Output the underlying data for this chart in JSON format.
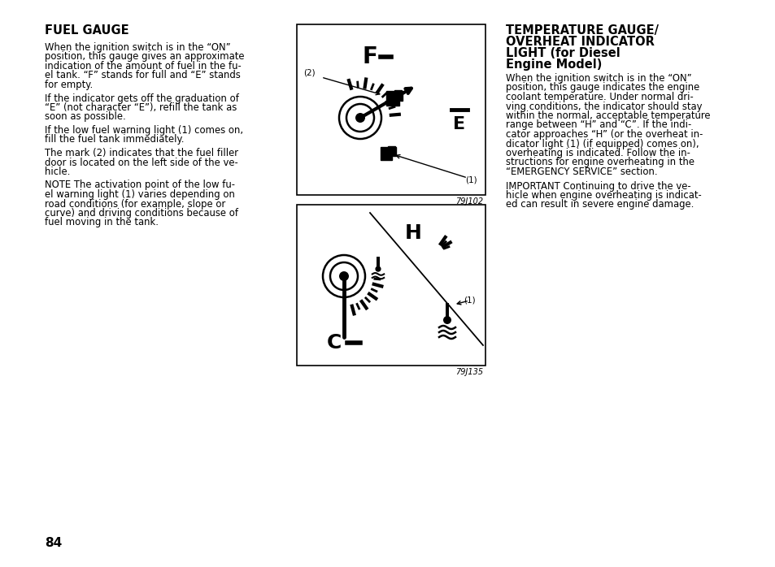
{
  "bg_color": "#ffffff",
  "page_number": "84",
  "left_title": "FUEL GAUGE",
  "left_text1": "When the ignition switch is in the “ON”\nposition, this gauge gives an approximate\nindication of the amount of fuel in the fu-\nel tank. “F” stands for full and “E” stands\nfor empty.",
  "left_text2": "If the indicator gets off the graduation of\n“E” (not character “E”), refill the tank as\nsoon as possible.",
  "left_text3": "If the low fuel warning light (1) comes on,\nfill the fuel tank immediately.",
  "left_text4": "The mark (2) indicates that the fuel filler\ndoor is located on the left side of the ve-\nhicle.",
  "left_text5": "NOTE The activation point of the low fu-\nel warning light (1) varies depending on\nroad conditions (for example, slope or\ncurve) and driving conditions because of\nfuel moving in the tank.",
  "right_title_line1": "TEMPERATURE GAUGE/",
  "right_title_line2": "OVERHEAT INDICATOR",
  "right_title_line3": "LIGHT (for Diesel",
  "right_title_line4": "Engine Model)",
  "right_text1": "When the ignition switch is in the “ON”\nposition, this gauge indicates the engine\ncoolant temperature. Under normal dri-\nving conditions, the indicator should stay\nwithin the normal, acceptable temperature\nrange between “H” and “C”. If the indi-\ncator approaches “H” (or the overheat in-\ndicator light (1) (if equipped) comes on),\noverheating is indicated. Follow the in-\nstructions for engine overheating in the\n“EMERGENCY SERVICE” section.",
  "right_text2": "IMPORTANT Continuing to drive the ve-\nhicle when engine overheating is indicat-\ned can result in severe engine damage.",
  "image1_code": "79J102",
  "image2_code": "79J135",
  "text_color": "#000000"
}
